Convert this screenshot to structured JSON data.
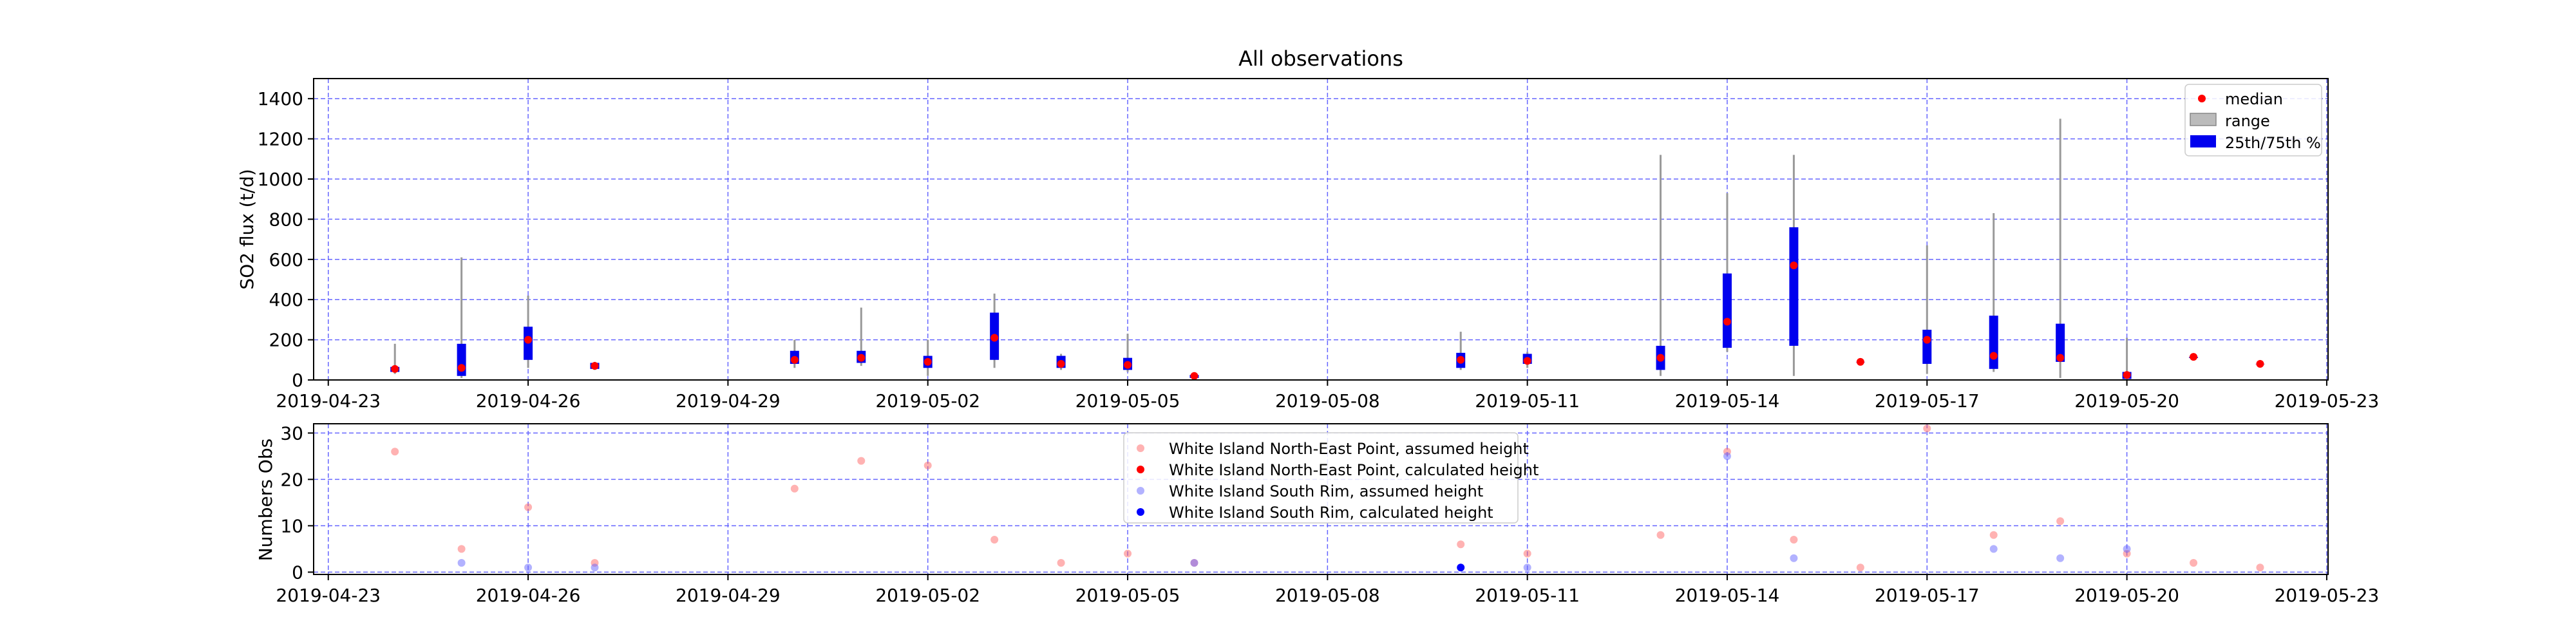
{
  "chart_data": [
    {
      "type": "box",
      "title": "All observations",
      "xlabel": "",
      "ylabel": "SO2 flux (t/d)",
      "x_axis": {
        "type": "date",
        "min": "2019-04-23",
        "max": "2019-05-23",
        "ticks": [
          "2019-04-23",
          "2019-04-26",
          "2019-04-29",
          "2019-05-02",
          "2019-05-05",
          "2019-05-08",
          "2019-05-11",
          "2019-05-14",
          "2019-05-17",
          "2019-05-20",
          "2019-05-23"
        ]
      },
      "y_axis": {
        "min": 0,
        "max": 1500,
        "ticks": [
          "0",
          "200",
          "400",
          "600",
          "800",
          "1000",
          "1200",
          "1400"
        ]
      },
      "grid": true,
      "legend": {
        "position": "top-right",
        "entries": [
          "median",
          "range",
          "25th/75th %"
        ]
      },
      "colors": {
        "median": "#ff0000",
        "range": "#999999",
        "iqr": "#0000ee",
        "grid": "#6666ff"
      },
      "data": [
        {
          "date": "2019-04-24",
          "min": 30,
          "q1": 40,
          "median": 55,
          "q3": 65,
          "max": 180
        },
        {
          "date": "2019-04-25",
          "min": 10,
          "q1": 20,
          "median": 60,
          "q3": 180,
          "max": 610
        },
        {
          "date": "2019-04-26",
          "min": 60,
          "q1": 100,
          "median": 200,
          "q3": 265,
          "max": 420
        },
        {
          "date": "2019-04-27",
          "min": 50,
          "q1": 55,
          "median": 70,
          "q3": 85,
          "max": 90
        },
        {
          "date": "2019-04-30",
          "min": 60,
          "q1": 80,
          "median": 100,
          "q3": 145,
          "max": 200
        },
        {
          "date": "2019-05-01",
          "min": 70,
          "q1": 85,
          "median": 110,
          "q3": 145,
          "max": 360
        },
        {
          "date": "2019-05-02",
          "min": 20,
          "q1": 60,
          "median": 90,
          "q3": 120,
          "max": 200
        },
        {
          "date": "2019-05-03",
          "min": 60,
          "q1": 100,
          "median": 210,
          "q3": 335,
          "max": 430
        },
        {
          "date": "2019-05-04",
          "min": 50,
          "q1": 60,
          "median": 80,
          "q3": 120,
          "max": 130
        },
        {
          "date": "2019-05-05",
          "min": 40,
          "q1": 50,
          "median": 75,
          "q3": 110,
          "max": 230
        },
        {
          "date": "2019-05-06",
          "min": 5,
          "q1": 10,
          "median": 20,
          "q3": 25,
          "max": 30
        },
        {
          "date": "2019-05-10",
          "min": 50,
          "q1": 60,
          "median": 100,
          "q3": 135,
          "max": 240
        },
        {
          "date": "2019-05-11",
          "min": 60,
          "q1": 80,
          "median": 95,
          "q3": 130,
          "max": 140
        },
        {
          "date": "2019-05-13",
          "min": 20,
          "q1": 50,
          "median": 110,
          "q3": 170,
          "max": 1120
        },
        {
          "date": "2019-05-14",
          "min": 140,
          "q1": 160,
          "median": 290,
          "q3": 530,
          "max": 930
        },
        {
          "date": "2019-05-15",
          "min": 20,
          "q1": 170,
          "median": 570,
          "q3": 760,
          "max": 1120
        },
        {
          "date": "2019-05-16",
          "min": 90,
          "q1": 90,
          "median": 90,
          "q3": 90,
          "max": 90
        },
        {
          "date": "2019-05-17",
          "min": 30,
          "q1": 80,
          "median": 200,
          "q3": 250,
          "max": 670
        },
        {
          "date": "2019-05-18",
          "min": 40,
          "q1": 55,
          "median": 120,
          "q3": 320,
          "max": 830
        },
        {
          "date": "2019-05-19",
          "min": 10,
          "q1": 90,
          "median": 110,
          "q3": 280,
          "max": 1300
        },
        {
          "date": "2019-05-20",
          "min": 0,
          "q1": 5,
          "median": 25,
          "q3": 40,
          "max": 210
        },
        {
          "date": "2019-05-21",
          "min": 110,
          "q1": 110,
          "median": 115,
          "q3": 115,
          "max": 120
        },
        {
          "date": "2019-05-22",
          "min": 80,
          "q1": 80,
          "median": 80,
          "q3": 80,
          "max": 80
        }
      ]
    },
    {
      "type": "scatter",
      "title": "",
      "xlabel": "",
      "ylabel": "Numbers Obs",
      "x_axis": {
        "type": "date",
        "min": "2019-04-23",
        "max": "2019-05-23",
        "ticks": [
          "2019-04-23",
          "2019-04-26",
          "2019-04-29",
          "2019-05-02",
          "2019-05-05",
          "2019-05-08",
          "2019-05-11",
          "2019-05-14",
          "2019-05-17",
          "2019-05-20",
          "2019-05-23"
        ]
      },
      "y_axis": {
        "min": -0.5,
        "max": 32,
        "ticks": [
          "0",
          "10",
          "20",
          "30"
        ]
      },
      "grid": true,
      "legend": {
        "position": "top-center"
      },
      "series": [
        {
          "name": "White Island North-East Point, assumed height",
          "color": "#ff6666",
          "opacity": 0.5,
          "points": [
            [
              "2019-04-24",
              26
            ],
            [
              "2019-04-25",
              5
            ],
            [
              "2019-04-26",
              14
            ],
            [
              "2019-04-27",
              2
            ],
            [
              "2019-04-30",
              18
            ],
            [
              "2019-05-01",
              24
            ],
            [
              "2019-05-02",
              23
            ],
            [
              "2019-05-03",
              7
            ],
            [
              "2019-05-04",
              2
            ],
            [
              "2019-05-05",
              4
            ],
            [
              "2019-05-06",
              2
            ],
            [
              "2019-05-10",
              6
            ],
            [
              "2019-05-11",
              4
            ],
            [
              "2019-05-13",
              8
            ],
            [
              "2019-05-14",
              26
            ],
            [
              "2019-05-15",
              7
            ],
            [
              "2019-05-16",
              1
            ],
            [
              "2019-05-17",
              31
            ],
            [
              "2019-05-18",
              8
            ],
            [
              "2019-05-19",
              11
            ],
            [
              "2019-05-20",
              4
            ],
            [
              "2019-05-21",
              2
            ],
            [
              "2019-05-22",
              1
            ]
          ]
        },
        {
          "name": "White Island North-East Point, calculated height",
          "color": "#ff0000",
          "opacity": 1,
          "points": []
        },
        {
          "name": "White Island South Rim, assumed height",
          "color": "#6666ff",
          "opacity": 0.5,
          "points": [
            [
              "2019-04-25",
              2
            ],
            [
              "2019-04-26",
              1
            ],
            [
              "2019-04-27",
              1
            ],
            [
              "2019-05-06",
              2
            ],
            [
              "2019-05-11",
              1
            ],
            [
              "2019-05-14",
              25
            ],
            [
              "2019-05-15",
              3
            ],
            [
              "2019-05-18",
              5
            ],
            [
              "2019-05-19",
              3
            ],
            [
              "2019-05-20",
              5
            ]
          ]
        },
        {
          "name": "White Island South Rim, calculated height",
          "color": "#0000ff",
          "opacity": 1,
          "points": [
            [
              "2019-05-10",
              1
            ]
          ]
        }
      ]
    }
  ]
}
